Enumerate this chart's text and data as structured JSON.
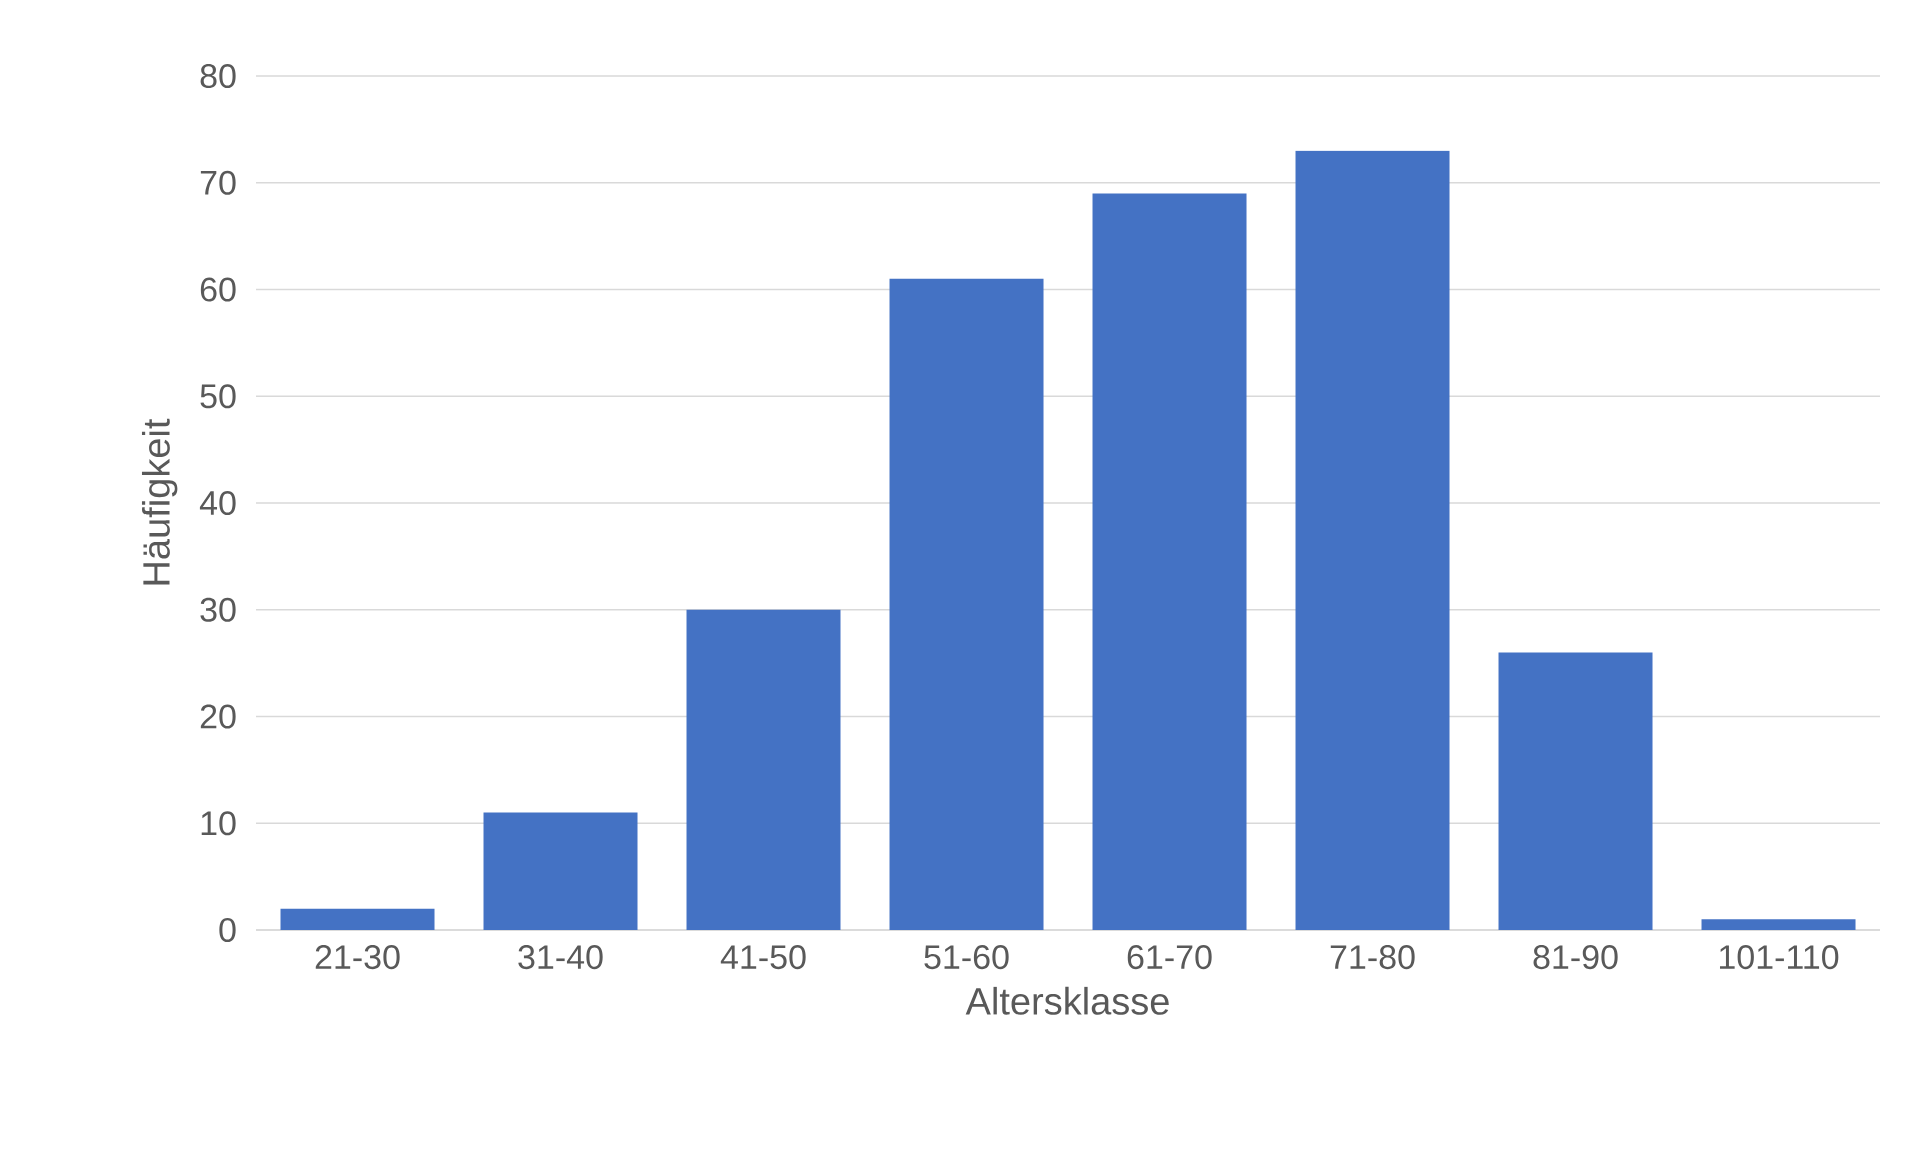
{
  "chart_data": {
    "type": "bar",
    "categories": [
      "21-30",
      "31-40",
      "41-50",
      "51-60",
      "61-70",
      "71-80",
      "81-90",
      "101-110"
    ],
    "values": [
      2,
      11,
      30,
      61,
      69,
      73,
      26,
      1
    ],
    "color": "#4472c4",
    "xlabel": "Altersklasse",
    "ylabel": "Häufigkeit",
    "ylim": [
      0,
      80
    ],
    "yticks": [
      0,
      10,
      20,
      30,
      40,
      50,
      60,
      70,
      80
    ],
    "grid": "y"
  }
}
